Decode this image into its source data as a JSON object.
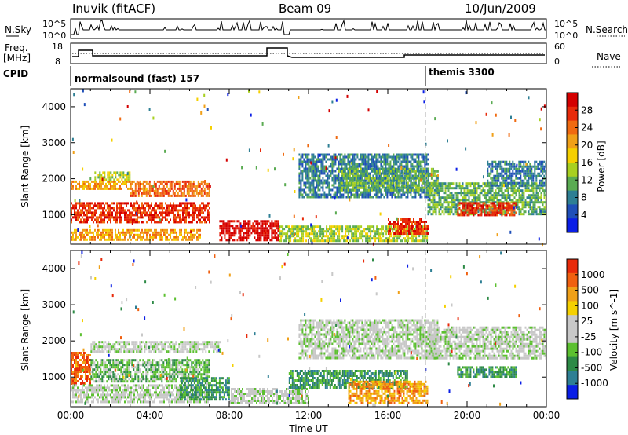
{
  "header": {
    "station": "Inuvik (fitACF)",
    "beam": "Beam 09",
    "date": "10/Jun/2009"
  },
  "strip_labels": {
    "nsky": "N.Sky",
    "nsearch": "N.Search",
    "freq": "Freq.",
    "mhz": "[MHz]",
    "nave": "Nave",
    "cpid": "CPID",
    "nsky_ticks": [
      "10^5",
      "10^0"
    ],
    "nsearch_ticks": [
      "10^5",
      "10^0"
    ],
    "freq_ticks": [
      "18",
      "8"
    ],
    "nave_ticks": [
      "60",
      "0"
    ]
  },
  "cpid_modes": [
    {
      "label": "normalsound (fast) 157",
      "start_hour": 0
    },
    {
      "label": "themis 3300",
      "start_hour": 18
    }
  ],
  "chart_data": [
    {
      "type": "heatmap",
      "name": "power",
      "xlabel": "",
      "ylabel": "Slant Range [km]",
      "xlim": [
        0,
        24
      ],
      "ylim": [
        180,
        4500
      ],
      "yticks": [
        1000,
        2000,
        3000,
        4000
      ],
      "colorbar": {
        "label": "Power [dB]",
        "ticks": [
          "28",
          "24",
          "20",
          "16",
          "12",
          "8",
          "4"
        ]
      },
      "colors": [
        "#0a1ee6",
        "#1f4fb8",
        "#2e7f94",
        "#5aab52",
        "#a8d020",
        "#f5d000",
        "#f0a018",
        "#f06a10",
        "#e82a0a",
        "#d40000"
      ],
      "regions": [
        {
          "x": [
            0.0,
            3.0
          ],
          "y": [
            1700,
            1950
          ],
          "level": 6
        },
        {
          "x": [
            3.0,
            7.0
          ],
          "y": [
            1500,
            1950
          ],
          "level": 7
        },
        {
          "x": [
            0.0,
            7.0
          ],
          "y": [
            800,
            1350
          ],
          "level": 8
        },
        {
          "x": [
            1.2,
            3.0
          ],
          "y": [
            1950,
            2200
          ],
          "level": 4
        },
        {
          "x": [
            7.5,
            10.5
          ],
          "y": [
            300,
            850
          ],
          "level": 9
        },
        {
          "x": [
            0.0,
            6.5
          ],
          "y": [
            300,
            600
          ],
          "level": 6
        },
        {
          "x": [
            10.5,
            18.0
          ],
          "y": [
            250,
            700
          ],
          "level": 4
        },
        {
          "x": [
            16.0,
            18.0
          ],
          "y": [
            500,
            900
          ],
          "level": 8
        },
        {
          "x": [
            11.5,
            18.0
          ],
          "y": [
            1500,
            2700
          ],
          "level": 2
        },
        {
          "x": [
            13.5,
            18.5
          ],
          "y": [
            1700,
            2300
          ],
          "level": 3
        },
        {
          "x": [
            18.0,
            24.0
          ],
          "y": [
            1000,
            1900
          ],
          "level": 3
        },
        {
          "x": [
            19.5,
            22.5
          ],
          "y": [
            1000,
            1350
          ],
          "level": 8
        },
        {
          "x": [
            21.0,
            24.0
          ],
          "y": [
            1800,
            2500
          ],
          "level": 2
        }
      ]
    },
    {
      "type": "heatmap",
      "name": "velocity",
      "xlabel": "Time UT",
      "ylabel": "Slant Range [km]",
      "xlim": [
        0,
        24
      ],
      "ylim": [
        180,
        4500
      ],
      "yticks": [
        1000,
        2000,
        3000,
        4000
      ],
      "xticks": [
        "00:00",
        "04:00",
        "08:00",
        "12:00",
        "16:00",
        "20:00",
        "00:00"
      ],
      "colorbar": {
        "label": "Velocity [m s^-1]",
        "ticks": [
          "1000",
          "500",
          "100",
          "25",
          "-25",
          "-100",
          "-500",
          "-1000"
        ]
      },
      "colors": [
        "#0a1ee6",
        "#2e7f94",
        "#2d8a46",
        "#5cc030",
        "#c8c8c8",
        "#c8c8c8",
        "#f5d000",
        "#f0a018",
        "#f06010",
        "#e82a0a"
      ],
      "regions": [
        {
          "x": [
            0.0,
            1.0
          ],
          "y": [
            850,
            1700
          ],
          "level": 8
        },
        {
          "x": [
            1.0,
            7.5
          ],
          "y": [
            1700,
            2000
          ],
          "level": 4
        },
        {
          "x": [
            1.0,
            7.0
          ],
          "y": [
            900,
            1500
          ],
          "level": 3
        },
        {
          "x": [
            0.0,
            7.0
          ],
          "y": [
            300,
            800
          ],
          "level": 4
        },
        {
          "x": [
            5.5,
            8.0
          ],
          "y": [
            400,
            1000
          ],
          "level": 2
        },
        {
          "x": [
            8.0,
            12.0
          ],
          "y": [
            250,
            700
          ],
          "level": 4
        },
        {
          "x": [
            11.0,
            17.0
          ],
          "y": [
            700,
            1200
          ],
          "level": 2
        },
        {
          "x": [
            11.5,
            18.5
          ],
          "y": [
            1500,
            2600
          ],
          "level": 4
        },
        {
          "x": [
            18.0,
            24.0
          ],
          "y": [
            1500,
            2400
          ],
          "level": 4
        },
        {
          "x": [
            19.5,
            22.5
          ],
          "y": [
            1000,
            1300
          ],
          "level": 2
        },
        {
          "x": [
            14.0,
            18.0
          ],
          "y": [
            300,
            900
          ],
          "level": 7
        }
      ]
    }
  ]
}
